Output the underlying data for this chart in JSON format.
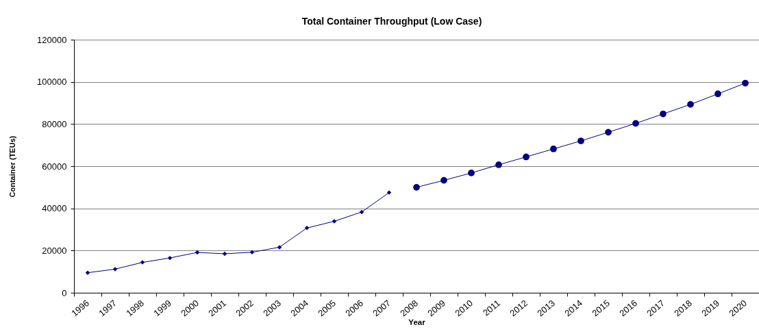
{
  "chart_data": {
    "type": "line",
    "title": "Total Container Throughput (Low Case)",
    "xlabel": "Year",
    "ylabel": "Container (TEUs)",
    "categories": [
      "1996",
      "1997",
      "1998",
      "1999",
      "2000",
      "2001",
      "2002",
      "2003",
      "2004",
      "2005",
      "2006",
      "2007",
      "2008",
      "2009",
      "2010",
      "2011",
      "2012",
      "2013",
      "2014",
      "2015",
      "2016",
      "2017",
      "2018",
      "2019",
      "2020"
    ],
    "series": [
      {
        "color": "#000080",
        "marker": "diamond",
        "values": [
          9500,
          11200,
          14400,
          16500,
          19100,
          18500,
          19200,
          21600,
          30700,
          33900,
          38300,
          47500,
          null,
          null,
          null,
          null,
          null,
          null,
          null,
          null,
          null,
          null,
          null,
          null,
          null
        ]
      },
      {
        "color": "#000080",
        "marker": "circle",
        "values": [
          null,
          null,
          null,
          null,
          null,
          null,
          null,
          null,
          null,
          null,
          null,
          null,
          50000,
          53300,
          56800,
          60700,
          64400,
          68200,
          72000,
          76100,
          80300,
          84800,
          89300,
          94300,
          99400
        ]
      }
    ],
    "ylim": [
      0,
      120000
    ],
    "yticks": [
      0,
      20000,
      40000,
      60000,
      80000,
      100000,
      120000
    ],
    "grid": "y"
  }
}
